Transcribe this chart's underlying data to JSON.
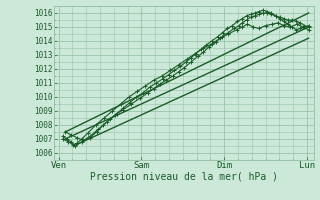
{
  "bg_color": "#cce8d8",
  "grid_color": "#99c4aa",
  "line_color": "#1a5c28",
  "ylim": [
    1005.5,
    1016.5
  ],
  "yticks": [
    1006,
    1007,
    1008,
    1009,
    1010,
    1011,
    1012,
    1013,
    1014,
    1015,
    1016
  ],
  "xlabel": "Pression niveau de la mer( hPa )",
  "xtick_labels": [
    "Ven",
    "Sam",
    "Dim",
    "Lun"
  ],
  "xtick_pos": [
    0,
    1,
    2,
    3
  ],
  "xlim": [
    -0.05,
    3.08
  ],
  "series": [
    {
      "x": [
        0.05,
        0.1,
        0.15,
        0.18,
        0.22,
        0.28,
        0.35,
        0.45,
        0.55,
        0.65,
        0.75,
        0.85,
        0.95,
        1.05,
        1.15,
        1.25,
        1.35,
        1.45,
        1.55,
        1.65,
        1.75,
        1.85,
        1.95,
        2.05,
        2.15,
        2.22,
        2.28,
        2.35,
        2.42,
        2.5,
        2.58,
        2.65,
        2.72,
        2.8,
        2.88,
        2.95,
        3.02
      ],
      "y": [
        1007.2,
        1007.0,
        1006.8,
        1006.6,
        1006.7,
        1007.0,
        1007.4,
        1008.0,
        1008.5,
        1009.0,
        1009.5,
        1010.0,
        1010.4,
        1010.8,
        1011.2,
        1011.5,
        1011.9,
        1012.3,
        1012.7,
        1013.1,
        1013.5,
        1013.8,
        1014.2,
        1014.5,
        1014.8,
        1015.0,
        1015.2,
        1015.0,
        1014.9,
        1015.1,
        1015.2,
        1015.3,
        1015.1,
        1015.0,
        1015.2,
        1015.0,
        1014.8
      ],
      "marker": "+",
      "markersize": 2.5,
      "linewidth": 0.8
    },
    {
      "x": [
        0.05,
        0.12,
        0.2,
        0.28,
        0.38,
        0.48,
        0.58,
        0.68,
        0.78,
        0.88,
        0.98,
        1.08,
        1.15,
        1.22,
        1.3,
        1.38,
        1.45,
        1.52,
        1.6,
        1.68,
        1.75,
        1.82,
        1.9,
        1.97,
        2.05,
        2.12,
        2.18,
        2.22,
        2.27,
        2.32,
        2.37,
        2.42,
        2.47,
        2.52,
        2.57,
        2.62,
        2.67,
        2.72,
        2.77,
        2.82,
        2.87,
        2.92,
        2.97,
        3.02
      ],
      "y": [
        1007.0,
        1006.8,
        1006.5,
        1006.8,
        1007.2,
        1007.7,
        1008.2,
        1008.7,
        1009.1,
        1009.5,
        1009.9,
        1010.3,
        1010.6,
        1010.9,
        1011.2,
        1011.5,
        1011.8,
        1012.1,
        1012.5,
        1012.9,
        1013.2,
        1013.6,
        1013.9,
        1014.3,
        1014.6,
        1014.9,
        1015.1,
        1015.3,
        1015.5,
        1015.7,
        1015.8,
        1015.9,
        1016.0,
        1016.0,
        1015.9,
        1015.8,
        1015.7,
        1015.6,
        1015.5,
        1015.5,
        1015.4,
        1015.3,
        1015.1,
        1015.0
      ],
      "marker": "+",
      "markersize": 2.5,
      "linewidth": 0.8
    },
    {
      "x": [
        0.08,
        0.15,
        0.22,
        0.3,
        0.38,
        0.46,
        0.54,
        0.62,
        0.7,
        0.78,
        0.86,
        0.94,
        1.02,
        1.1,
        1.18,
        1.26,
        1.33,
        1.4,
        1.47,
        1.54,
        1.6,
        1.66,
        1.72,
        1.78,
        1.85,
        1.92,
        1.98,
        2.04,
        2.1,
        2.16,
        2.22,
        2.27,
        2.32,
        2.37,
        2.42,
        2.47,
        2.52,
        2.57,
        2.62,
        2.67,
        2.72,
        2.77,
        2.82,
        2.87,
        2.92,
        2.97,
        3.02
      ],
      "y": [
        1007.5,
        1007.3,
        1007.1,
        1006.9,
        1007.1,
        1007.5,
        1008.0,
        1008.4,
        1008.8,
        1009.2,
        1009.6,
        1010.0,
        1010.3,
        1010.7,
        1011.0,
        1011.3,
        1011.6,
        1011.9,
        1012.2,
        1012.5,
        1012.8,
        1013.1,
        1013.4,
        1013.7,
        1014.0,
        1014.3,
        1014.6,
        1014.9,
        1015.1,
        1015.4,
        1015.6,
        1015.8,
        1015.9,
        1016.0,
        1016.1,
        1016.2,
        1016.1,
        1016.0,
        1015.8,
        1015.6,
        1015.4,
        1015.2,
        1015.0,
        1014.8,
        1014.9,
        1015.0,
        1015.1
      ],
      "marker": "+",
      "markersize": 2.5,
      "linewidth": 0.8
    },
    {
      "x": [
        0.08,
        3.02
      ],
      "y": [
        1007.5,
        1016.0
      ],
      "marker": null,
      "markersize": 0,
      "linewidth": 1.0
    },
    {
      "x": [
        0.08,
        3.02
      ],
      "y": [
        1007.0,
        1015.0
      ],
      "marker": null,
      "markersize": 0,
      "linewidth": 1.0
    },
    {
      "x": [
        0.18,
        3.02
      ],
      "y": [
        1006.5,
        1014.2
      ],
      "marker": null,
      "markersize": 0,
      "linewidth": 1.0
    }
  ]
}
